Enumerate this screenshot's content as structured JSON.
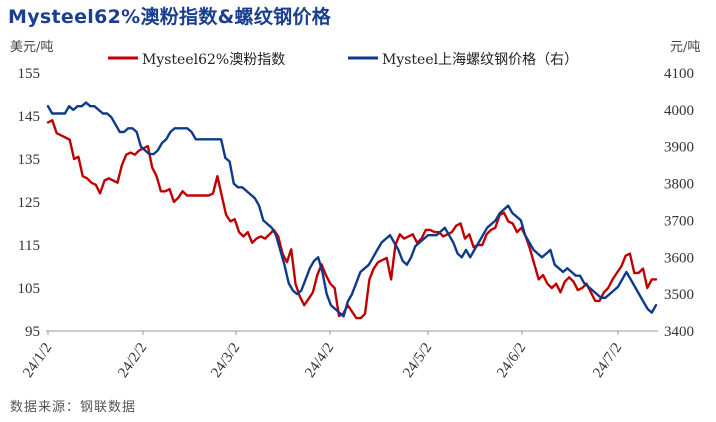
{
  "title": "Mysteel62%澳粉指数&螺纹钢价格",
  "left_unit": "美元/吨",
  "right_unit": "元/吨",
  "source": "数据来源：钢联数据",
  "chart_data": {
    "type": "line",
    "x_labels": [
      "24/1/2",
      "24/2/2",
      "24/3/2",
      "24/4/2",
      "24/5/2",
      "24/6/2",
      "24/7/2"
    ],
    "y_left": {
      "ticks": [
        95,
        105,
        115,
        125,
        135,
        145,
        155
      ],
      "range": [
        95,
        155
      ]
    },
    "y_right": {
      "ticks": [
        3400,
        3500,
        3600,
        3700,
        3800,
        3900,
        4000,
        4100
      ],
      "range": [
        3400,
        4100
      ]
    },
    "legend_position": "top",
    "series": [
      {
        "name": "Mysteel62%澳粉指数",
        "axis": "left",
        "color": "#c00000",
        "values": [
          143.5,
          144,
          141,
          140.5,
          140,
          139.5,
          135,
          135.5,
          131,
          130.5,
          129.5,
          129,
          127,
          130,
          130.5,
          130,
          129.5,
          133.5,
          136,
          136.5,
          136,
          137,
          137.5,
          138,
          133,
          131,
          127.5,
          127.5,
          128,
          125,
          126,
          127.5,
          126.5,
          126.5,
          126.5,
          126.5,
          126.5,
          126.5,
          127,
          131,
          126.5,
          122,
          120.5,
          121,
          118,
          117,
          118,
          115.5,
          116.5,
          117,
          116.5,
          117.5,
          118.5,
          117,
          113,
          111,
          114,
          106,
          103,
          101,
          102.5,
          104,
          108,
          110.5,
          108,
          106,
          105,
          98.5,
          99,
          101,
          99.5,
          98,
          98,
          99,
          107,
          109.5,
          111,
          111.5,
          112,
          107,
          115,
          117.5,
          116.5,
          117,
          117.5,
          115.5,
          116.5,
          118.5,
          118.5,
          118,
          118,
          117,
          117.5,
          118,
          119.5,
          120,
          116.5,
          117.5,
          114.5,
          115,
          115,
          117.5,
          118.5,
          119,
          122,
          122.5,
          120.5,
          120,
          118,
          119,
          117,
          114,
          110.5,
          107,
          108,
          106,
          105,
          106,
          104,
          106.5,
          107.5,
          106.5,
          104.5,
          105,
          106,
          104,
          102,
          102,
          104,
          105,
          107,
          108.5,
          110,
          112.5,
          113,
          108.5,
          108.5,
          109.5,
          105,
          107,
          107
        ]
      },
      {
        "name": "Mysteel上海螺纹钢价格（右）",
        "axis": "right",
        "color": "#0f3a8a",
        "values": [
          4010,
          3990,
          3990,
          3990,
          3990,
          4010,
          4000,
          4010,
          4010,
          4020,
          4010,
          4010,
          4000,
          3990,
          3990,
          3980,
          3960,
          3940,
          3940,
          3950,
          3950,
          3940,
          3900,
          3890,
          3880,
          3880,
          3890,
          3910,
          3920,
          3940,
          3950,
          3950,
          3950,
          3950,
          3940,
          3920,
          3920,
          3920,
          3920,
          3920,
          3920,
          3920,
          3870,
          3860,
          3800,
          3790,
          3790,
          3780,
          3770,
          3760,
          3740,
          3700,
          3690,
          3680,
          3660,
          3620,
          3580,
          3530,
          3510,
          3500,
          3510,
          3540,
          3570,
          3590,
          3600,
          3560,
          3500,
          3470,
          3460,
          3450,
          3440,
          3480,
          3500,
          3530,
          3560,
          3570,
          3580,
          3600,
          3620,
          3640,
          3650,
          3660,
          3640,
          3620,
          3590,
          3580,
          3600,
          3630,
          3640,
          3650,
          3660,
          3660,
          3660,
          3670,
          3680,
          3660,
          3640,
          3610,
          3600,
          3620,
          3600,
          3620,
          3640,
          3660,
          3680,
          3690,
          3700,
          3720,
          3730,
          3740,
          3720,
          3710,
          3700,
          3660,
          3640,
          3620,
          3610,
          3600,
          3610,
          3620,
          3580,
          3570,
          3560,
          3570,
          3560,
          3550,
          3550,
          3530,
          3520,
          3510,
          3500,
          3490,
          3490,
          3500,
          3510,
          3520,
          3540,
          3560,
          3540,
          3520,
          3500,
          3480,
          3460,
          3450,
          3470
        ]
      }
    ]
  }
}
